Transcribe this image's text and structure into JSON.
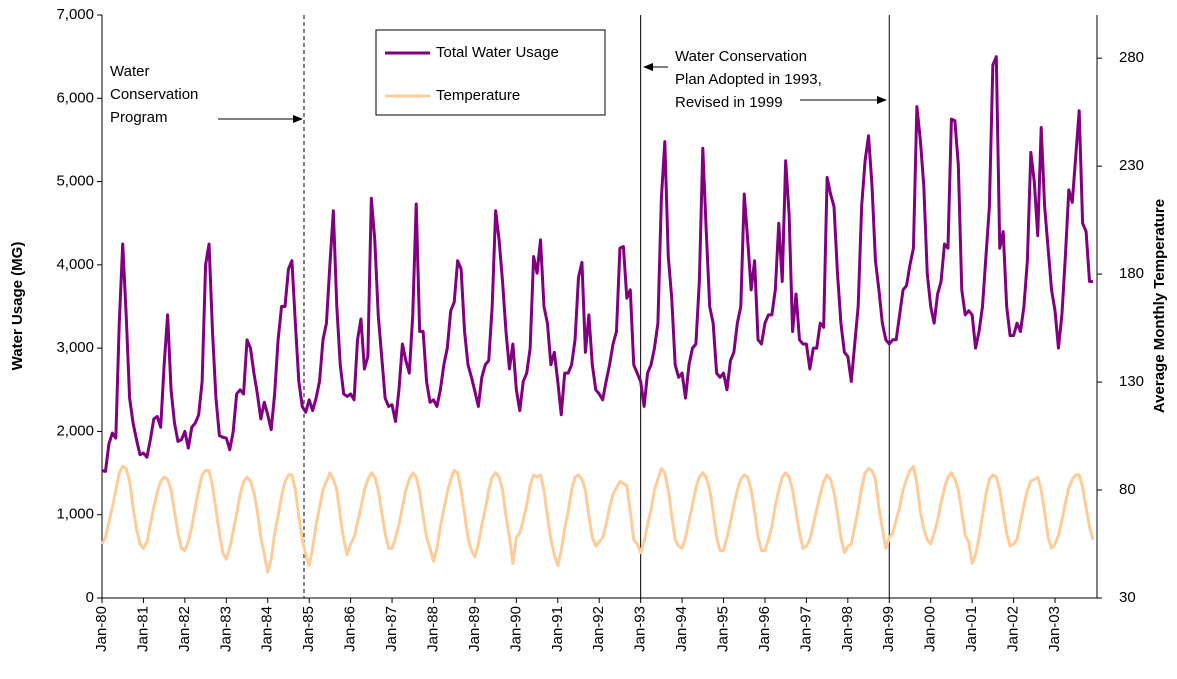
{
  "chart_data": {
    "type": "line",
    "categories": [
      "Jan-80",
      null,
      null,
      null,
      null,
      null,
      null,
      null,
      null,
      null,
      null,
      null,
      "Jan-81",
      null,
      null,
      null,
      null,
      null,
      null,
      null,
      null,
      null,
      null,
      null,
      "Jan-82",
      null,
      null,
      null,
      null,
      null,
      null,
      null,
      null,
      null,
      null,
      null,
      "Jan-83",
      null,
      null,
      null,
      null,
      null,
      null,
      null,
      null,
      null,
      null,
      null,
      "Jan-84",
      null,
      null,
      null,
      null,
      null,
      null,
      null,
      null,
      null,
      null,
      null,
      "Jan-85",
      null,
      null,
      null,
      null,
      null,
      null,
      null,
      null,
      null,
      null,
      null,
      "Jan-86",
      null,
      null,
      null,
      null,
      null,
      null,
      null,
      null,
      null,
      null,
      null,
      "Jan-87",
      null,
      null,
      null,
      null,
      null,
      null,
      null,
      null,
      null,
      null,
      null,
      "Jan-88",
      null,
      null,
      null,
      null,
      null,
      null,
      null,
      null,
      null,
      null,
      null,
      "Jan-89",
      null,
      null,
      null,
      null,
      null,
      null,
      null,
      null,
      null,
      null,
      null,
      "Jan-90",
      null,
      null,
      null,
      null,
      null,
      null,
      null,
      null,
      null,
      null,
      null,
      "Jan-91",
      null,
      null,
      null,
      null,
      null,
      null,
      null,
      null,
      null,
      null,
      null,
      "Jan-92",
      null,
      null,
      null,
      null,
      null,
      null,
      null,
      null,
      null,
      null,
      null,
      "Jan-93",
      null,
      null,
      null,
      null,
      null,
      null,
      null,
      null,
      null,
      null,
      null,
      "Jan-94",
      null,
      null,
      null,
      null,
      null,
      null,
      null,
      null,
      null,
      null,
      null,
      "Jan-95",
      null,
      null,
      null,
      null,
      null,
      null,
      null,
      null,
      null,
      null,
      null,
      "Jan-96",
      null,
      null,
      null,
      null,
      null,
      null,
      null,
      null,
      null,
      null,
      null,
      "Jan-97",
      null,
      null,
      null,
      null,
      null,
      null,
      null,
      null,
      null,
      null,
      null,
      "Jan-98",
      null,
      null,
      null,
      null,
      null,
      null,
      null,
      null,
      null,
      null,
      null,
      "Jan-99",
      null,
      null,
      null,
      null,
      null,
      null,
      null,
      null,
      null,
      null,
      null,
      "Jan-00",
      null,
      null,
      null,
      null,
      null,
      null,
      null,
      null,
      null,
      null,
      null,
      "Jan-01",
      null,
      null,
      null,
      null,
      null,
      null,
      null,
      null,
      null,
      null,
      null,
      "Jan-02",
      null,
      null,
      null,
      null,
      null,
      null,
      null,
      null,
      null,
      null,
      null,
      "Jan-03",
      null,
      null,
      null,
      null,
      null,
      null,
      null,
      null,
      null,
      null,
      null
    ],
    "series": [
      {
        "name": "Total Water Usage",
        "color": "#800080",
        "axis": "y",
        "values": [
          1530,
          1520,
          1850,
          1980,
          1920,
          3300,
          4250,
          3400,
          2400,
          2100,
          1900,
          1720,
          1740,
          1690,
          1900,
          2150,
          2180,
          2050,
          2800,
          3400,
          2500,
          2100,
          1880,
          1900,
          2000,
          1800,
          2050,
          2100,
          2200,
          2600,
          4000,
          4250,
          3200,
          2400,
          1950,
          1930,
          1920,
          1780,
          2000,
          2450,
          2500,
          2450,
          3100,
          3000,
          2700,
          2450,
          2150,
          2350,
          2200,
          2020,
          2450,
          3100,
          3500,
          3500,
          3950,
          4050,
          3300,
          2600,
          2300,
          2230,
          2380,
          2250,
          2400,
          2600,
          3100,
          3300,
          4000,
          4650,
          3500,
          2800,
          2450,
          2420,
          2450,
          2380,
          3100,
          3350,
          2750,
          2900,
          4800,
          4300,
          3400,
          2900,
          2400,
          2300,
          2320,
          2120,
          2500,
          3050,
          2850,
          2700,
          3400,
          4730,
          3200,
          3200,
          2600,
          2350,
          2380,
          2300,
          2500,
          2800,
          3000,
          3450,
          3550,
          4050,
          3950,
          3200,
          2800,
          2650,
          2480,
          2300,
          2650,
          2800,
          2850,
          3500,
          4650,
          4300,
          3800,
          3200,
          2750,
          3050,
          2500,
          2250,
          2600,
          2700,
          3000,
          4100,
          3900,
          4300,
          3500,
          3300,
          2800,
          2950,
          2600,
          2200,
          2700,
          2700,
          2800,
          3100,
          3850,
          4030,
          2950,
          3400,
          2800,
          2500,
          2450,
          2380,
          2600,
          2800,
          3050,
          3200,
          4200,
          4220,
          3600,
          3700,
          2800,
          2700,
          2600,
          2300,
          2700,
          2800,
          3000,
          3300,
          4800,
          5480,
          4100,
          3600,
          2800,
          2650,
          2700,
          2400,
          2800,
          3000,
          3050,
          3800,
          5400,
          4400,
          3500,
          3300,
          2700,
          2650,
          2700,
          2500,
          2850,
          2950,
          3300,
          3500,
          4850,
          4300,
          3700,
          4050,
          3100,
          3050,
          3300,
          3400,
          3400,
          3700,
          4500,
          3800,
          5250,
          4600,
          3200,
          3650,
          3100,
          3050,
          3050,
          2750,
          3000,
          3000,
          3300,
          3250,
          5050,
          4850,
          4700,
          3900,
          3300,
          2950,
          2900,
          2600,
          3050,
          3500,
          4700,
          5250,
          5550,
          4950,
          4050,
          3700,
          3300,
          3100,
          3050,
          3100,
          3100,
          3400,
          3700,
          3750,
          4000,
          4200,
          5900,
          5500,
          4950,
          3900,
          3500,
          3300,
          3650,
          3800,
          4250,
          4200,
          5750,
          5730,
          5200,
          3700,
          3400,
          3450,
          3400,
          3000,
          3200,
          3500,
          4100,
          4700,
          6400,
          6500,
          4200,
          4400,
          3500,
          3150,
          3150,
          3300,
          3200,
          3500,
          4050,
          5350,
          5000,
          4350,
          5650,
          4700,
          4200,
          3700,
          3450,
          3000,
          3400,
          4100,
          4900,
          4750,
          5300,
          5850,
          4500,
          4400,
          3800,
          3800
        ]
      },
      {
        "name": "Temperature",
        "color": "#FFCC99",
        "axis": "y2",
        "values": [
          55,
          58,
          65,
          72,
          80,
          88,
          91,
          90,
          84,
          72,
          62,
          55,
          53,
          56,
          64,
          72,
          79,
          84,
          86,
          85,
          80,
          70,
          60,
          53,
          52,
          56,
          63,
          72,
          80,
          87,
          89,
          89,
          82,
          71,
          60,
          51,
          48,
          53,
          61,
          69,
          78,
          84,
          86,
          84,
          79,
          70,
          58,
          50,
          42,
          48,
          60,
          68,
          77,
          84,
          87,
          87,
          80,
          68,
          57,
          50,
          45,
          53,
          64,
          72,
          80,
          84,
          88,
          85,
          80,
          68,
          57,
          50,
          55,
          58,
          65,
          72,
          80,
          85,
          88,
          86,
          80,
          70,
          60,
          53,
          53,
          58,
          64,
          72,
          80,
          85,
          88,
          86,
          79,
          68,
          58,
          53,
          47,
          53,
          63,
          71,
          79,
          85,
          89,
          88,
          80,
          69,
          58,
          52,
          49,
          55,
          64,
          71,
          80,
          86,
          88,
          86,
          80,
          68,
          58,
          46,
          58,
          60,
          66,
          73,
          82,
          87,
          86,
          87,
          80,
          68,
          57,
          50,
          45,
          52,
          62,
          70,
          80,
          86,
          87,
          85,
          80,
          68,
          58,
          54,
          56,
          58,
          64,
          72,
          78,
          81,
          84,
          83,
          82,
          70,
          57,
          55,
          51,
          56,
          64,
          71,
          80,
          85,
          90,
          88,
          80,
          68,
          57,
          54,
          53,
          58,
          66,
          73,
          81,
          86,
          88,
          86,
          80,
          70,
          58,
          52,
          52,
          58,
          65,
          73,
          80,
          85,
          87,
          86,
          80,
          70,
          58,
          52,
          52,
          57,
          63,
          73,
          80,
          86,
          88,
          86,
          80,
          70,
          60,
          53,
          54,
          57,
          64,
          71,
          78,
          84,
          87,
          85,
          79,
          69,
          58,
          51,
          54,
          55,
          63,
          71,
          81,
          88,
          90,
          89,
          85,
          72,
          62,
          53,
          58,
          60,
          66,
          72,
          80,
          85,
          89,
          91,
          83,
          70,
          62,
          57,
          55,
          60,
          66,
          74,
          81,
          86,
          88,
          85,
          80,
          70,
          59,
          56,
          46,
          50,
          58,
          68,
          78,
          85,
          87,
          86,
          80,
          70,
          60,
          54,
          55,
          57,
          65,
          73,
          80,
          84,
          85,
          86,
          80,
          70,
          58,
          53,
          55,
          59,
          66,
          74,
          81,
          85,
          87,
          87,
          81,
          72,
          63,
          57
        ]
      }
    ],
    "ylabel": "Water Usage (MG)",
    "y2label": "Average Monthly Temperature",
    "ylim": [
      0,
      7000
    ],
    "yticks": [
      0,
      {
        "value": 1000,
        "label": "1,000"
      },
      {
        "value": 2000,
        "label": "2,000"
      },
      {
        "value": 3000,
        "label": "3,000"
      },
      {
        "value": 4000,
        "label": "4,000"
      },
      {
        "value": 5000,
        "label": "5,000"
      },
      {
        "value": 6000,
        "label": "6,000"
      },
      {
        "value": 7000,
        "label": "7,000"
      }
    ],
    "y2lim": [
      30,
      300
    ],
    "y2ticks": [
      30,
      80,
      130,
      180,
      230,
      280
    ],
    "reference_lines": [
      {
        "at": 58.5,
        "dashed": true
      },
      {
        "at": 156,
        "dashed": false
      },
      {
        "at": 228,
        "dashed": false
      }
    ],
    "annotations": [
      {
        "lines": [
          "Water",
          "Conservation",
          "Program"
        ]
      },
      {
        "lines": [
          "Water Conservation",
          "Plan Adopted in 1993,",
          "Revised in 1999"
        ]
      }
    ]
  }
}
